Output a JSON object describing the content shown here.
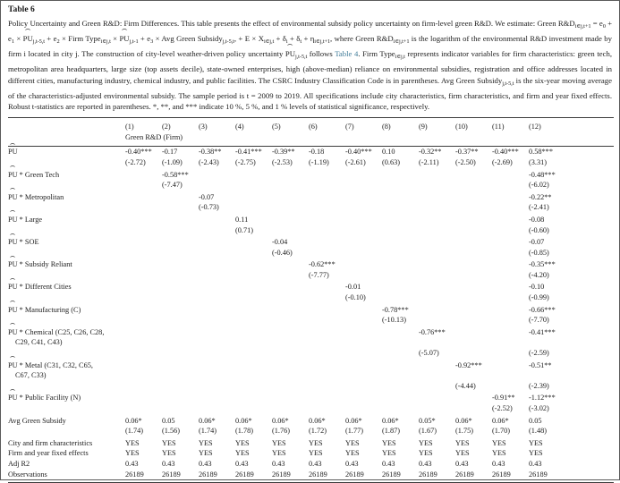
{
  "page": {
    "title": "Table 6"
  },
  "caption": {
    "link_color": "#3f7b98",
    "segments": [
      {
        "t": "Policy Uncertainty and Green R&D: Firm Differences. This table presents the effect of environmental subsidy policy uncertainty on firm-level green R&D. We estimate: Green R&D"
      },
      {
        "t": "i∈j,t+1",
        "s": "sub"
      },
      {
        "t": " = e"
      },
      {
        "t": "0",
        "s": "sub"
      },
      {
        "t": " + e"
      },
      {
        "t": "1",
        "s": "sub"
      },
      {
        "t": " × "
      },
      {
        "t": "PU",
        "s": "hat"
      },
      {
        "t": "j,t-5,t",
        "s": "sub"
      },
      {
        "t": " + e"
      },
      {
        "t": "2",
        "s": "sub"
      },
      {
        "t": " × Firm Type"
      },
      {
        "t": "i∈j,t",
        "s": "sub"
      },
      {
        "t": " × "
      },
      {
        "t": "PU",
        "s": "hat"
      },
      {
        "t": "j,t-1",
        "s": "sub"
      },
      {
        "t": " + e"
      },
      {
        "t": "3",
        "s": "sub"
      },
      {
        "t": " × Avg Green Subsidy"
      },
      {
        "t": "j,t-5,t",
        "s": "sub"
      },
      {
        "t": ", + E × X"
      },
      {
        "t": "i∈j,t",
        "s": "sub"
      },
      {
        "t": " + δ"
      },
      {
        "t": "i",
        "s": "sub"
      },
      {
        "t": " + δ"
      },
      {
        "t": "t",
        "s": "sub"
      },
      {
        "t": " + η"
      },
      {
        "t": "i∈j,t+1",
        "s": "sub"
      },
      {
        "t": ", where Green R&D"
      },
      {
        "t": "i∈j,t+1",
        "s": "sub"
      },
      {
        "t": " is the logarithm of the environmental R&D investment made by firm i located in city j. The construction of city-level weather-driven policy uncertainty "
      },
      {
        "t": "PU",
        "s": "hat"
      },
      {
        "t": "j,t-5,t",
        "s": "sub"
      },
      {
        "t": " follows "
      },
      {
        "t": "Table 4",
        "s": "link"
      },
      {
        "t": ". Firm Type"
      },
      {
        "t": "i∈j,t",
        "s": "sub"
      },
      {
        "t": " represents indicator variables for firm characteristics: green tech, metropolitan area headquarters, large size (top assets decile), state-owned enterprises, high (above-median) reliance on environmental subsidies, registration and office addresses located in different cities, manufacturing industry, chemical industry, and public facilities. The CSRC Industry Classification Code is in parentheses. Avg Green Subsidy"
      },
      {
        "t": "j,t-5,t",
        "s": "sub"
      },
      {
        "t": " is the six-year moving average of the characteristics-adjusted environmental subsidy. The sample period is t = 2009 to 2019. All specifications include city characteristics, firm characteristics, and firm and year fixed effects. Robust t-statistics are reported in parentheses. *, **, and *** indicate 10 %, 5 %, and 1 % levels of statistical significance, respectively."
      }
    ]
  },
  "table": {
    "column_numbers": [
      "(1)",
      "(2)",
      "(3)",
      "(4)",
      "(5)",
      "(6)",
      "(7)",
      "(8)",
      "(9)",
      "(10)",
      "(11)",
      "(12)"
    ],
    "subheader": "Green R&D (Firm)",
    "lines": [
      {
        "kind": "coef",
        "hat": "PU",
        "label": "",
        "cells": [
          "-0.40***",
          "-0.17",
          "-0.38**",
          "-0.41***",
          "-0.39**",
          "-0.18",
          "-0.40***",
          "0.10",
          "-0.32**",
          "-0.37**",
          "-0.40***",
          "0.58***"
        ]
      },
      {
        "kind": "tstat",
        "label": "",
        "cells": [
          "(-2.72)",
          "(-1.09)",
          "(-2.43)",
          "(-2.75)",
          "(-2.53)",
          "(-1.19)",
          "(-2.61)",
          "(0.63)",
          "(-2.11)",
          "(-2.50)",
          "(-2.69)",
          "(3.31)"
        ]
      },
      {
        "kind": "coef",
        "hat": "PU",
        "label": " * Green Tech",
        "cells": [
          "",
          "-0.58***",
          "",
          "",
          "",
          "",
          "",
          "",
          "",
          "",
          "",
          "-0.48***"
        ]
      },
      {
        "kind": "tstat",
        "label": "",
        "cells": [
          "",
          "(-7.47)",
          "",
          "",
          "",
          "",
          "",
          "",
          "",
          "",
          "",
          "(-6.02)"
        ]
      },
      {
        "kind": "coef",
        "hat": "PU",
        "label": " * Metropolitan",
        "cells": [
          "",
          "",
          "-0.07",
          "",
          "",
          "",
          "",
          "",
          "",
          "",
          "",
          "-0.22**"
        ]
      },
      {
        "kind": "tstat",
        "label": "",
        "cells": [
          "",
          "",
          "(-0.73)",
          "",
          "",
          "",
          "",
          "",
          "",
          "",
          "",
          "(-2.41)"
        ]
      },
      {
        "kind": "coef",
        "hat": "PU",
        "label": " * Large",
        "cells": [
          "",
          "",
          "",
          "0.11",
          "",
          "",
          "",
          "",
          "",
          "",
          "",
          "-0.08"
        ]
      },
      {
        "kind": "tstat",
        "label": "",
        "cells": [
          "",
          "",
          "",
          "(0.71)",
          "",
          "",
          "",
          "",
          "",
          "",
          "",
          "(-0.60)"
        ]
      },
      {
        "kind": "coef",
        "hat": "PU",
        "label": " * SOE",
        "cells": [
          "",
          "",
          "",
          "",
          "-0.04",
          "",
          "",
          "",
          "",
          "",
          "",
          "-0.07"
        ]
      },
      {
        "kind": "tstat",
        "label": "",
        "cells": [
          "",
          "",
          "",
          "",
          "(-0.46)",
          "",
          "",
          "",
          "",
          "",
          "",
          "(-0.85)"
        ]
      },
      {
        "kind": "coef",
        "hat": "PU",
        "label": " * Subsidy Reliant",
        "cells": [
          "",
          "",
          "",
          "",
          "",
          "-0.62***",
          "",
          "",
          "",
          "",
          "",
          "-0.35***"
        ]
      },
      {
        "kind": "tstat",
        "label": "",
        "cells": [
          "",
          "",
          "",
          "",
          "",
          "(-7.77)",
          "",
          "",
          "",
          "",
          "",
          "(-4.20)"
        ]
      },
      {
        "kind": "coef",
        "hat": "PU",
        "label": " * Different Cities",
        "cells": [
          "",
          "",
          "",
          "",
          "",
          "",
          "-0.01",
          "",
          "",
          "",
          "",
          "-0.10"
        ]
      },
      {
        "kind": "tstat",
        "label": "",
        "cells": [
          "",
          "",
          "",
          "",
          "",
          "",
          "(-0.10)",
          "",
          "",
          "",
          "",
          "(-0.99)"
        ]
      },
      {
        "kind": "coef",
        "hat": "PU",
        "label": " * Manufacturing (C)",
        "cells": [
          "",
          "",
          "",
          "",
          "",
          "",
          "",
          "-0.78***",
          "",
          "",
          "",
          "-0.66***"
        ]
      },
      {
        "kind": "tstat",
        "label": "",
        "cells": [
          "",
          "",
          "",
          "",
          "",
          "",
          "",
          "(-10.13)",
          "",
          "",
          "",
          "(-7.70)"
        ]
      },
      {
        "kind": "coef",
        "hat": "PU",
        "label": " * Chemical (C25, C26, C28,",
        "cells": [
          "",
          "",
          "",
          "",
          "",
          "",
          "",
          "",
          "-0.76***",
          "",
          "",
          "-0.41***"
        ]
      },
      {
        "kind": "coef",
        "indent": true,
        "label": "C29, C41, C43)",
        "cells": [
          "",
          "",
          "",
          "",
          "",
          "",
          "",
          "",
          "",
          "",
          "",
          ""
        ]
      },
      {
        "kind": "tstat",
        "label": "",
        "cells": [
          "",
          "",
          "",
          "",
          "",
          "",
          "",
          "",
          "(-5.07)",
          "",
          "",
          "(-2.59)"
        ]
      },
      {
        "kind": "coef",
        "hat": "PU",
        "label": " * Metal (C31, C32, C65,",
        "cells": [
          "",
          "",
          "",
          "",
          "",
          "",
          "",
          "",
          "",
          "-0.92***",
          "",
          "-0.51**"
        ]
      },
      {
        "kind": "coef",
        "indent": true,
        "label": "C67, C33)",
        "cells": [
          "",
          "",
          "",
          "",
          "",
          "",
          "",
          "",
          "",
          "",
          "",
          ""
        ]
      },
      {
        "kind": "tstat",
        "label": "",
        "cells": [
          "",
          "",
          "",
          "",
          "",
          "",
          "",
          "",
          "",
          "(-4.44)",
          "",
          "(-2.39)"
        ]
      },
      {
        "kind": "coef",
        "hat": "PU",
        "label": " * Public Facility (N)",
        "cells": [
          "",
          "",
          "",
          "",
          "",
          "",
          "",
          "",
          "",
          "",
          "-0.91**",
          "-1.12***"
        ]
      },
      {
        "kind": "tstat",
        "label": "",
        "cells": [
          "",
          "",
          "",
          "",
          "",
          "",
          "",
          "",
          "",
          "",
          "(-2.52)",
          "(-3.02)"
        ]
      },
      {
        "kind": "coef",
        "label": "Avg Green Subsidy",
        "cells": [
          "0.06*",
          "0.05",
          "0.06*",
          "0.06*",
          "0.06*",
          "0.06*",
          "0.06*",
          "0.06*",
          "0.05*",
          "0.06*",
          "0.06*",
          "0.05"
        ]
      },
      {
        "kind": "tstat",
        "label": "",
        "cells": [
          "(1.74)",
          "(1.56)",
          "(1.74)",
          "(1.78)",
          "(1.76)",
          "(1.72)",
          "(1.77)",
          "(1.87)",
          "(1.67)",
          "(1.75)",
          "(1.70)",
          "(1.48)"
        ]
      },
      {
        "kind": "info",
        "label": "City and firm characteristics",
        "cells": [
          "YES",
          "YES",
          "YES",
          "YES",
          "YES",
          "YES",
          "YES",
          "YES",
          "YES",
          "YES",
          "YES",
          "YES"
        ]
      },
      {
        "kind": "info",
        "label": "Firm and year fixed effects",
        "cells": [
          "YES",
          "YES",
          "YES",
          "YES",
          "YES",
          "YES",
          "YES",
          "YES",
          "YES",
          "YES",
          "YES",
          "YES"
        ]
      },
      {
        "kind": "info",
        "label": "Adj R2",
        "cells": [
          "0.43",
          "0.43",
          "0.43",
          "0.43",
          "0.43",
          "0.43",
          "0.43",
          "0.43",
          "0.43",
          "0.43",
          "0.43",
          "0.43"
        ]
      },
      {
        "kind": "info",
        "label": "Observations",
        "cells": [
          "26189",
          "26189",
          "26189",
          "26189",
          "26189",
          "26189",
          "26189",
          "26189",
          "26189",
          "26189",
          "26189",
          "26189"
        ]
      }
    ]
  }
}
